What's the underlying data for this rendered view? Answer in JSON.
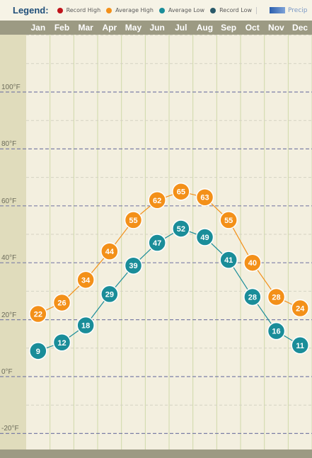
{
  "legend": {
    "title": "Legend:",
    "items": [
      {
        "label": "Record High",
        "color": "#c0141b"
      },
      {
        "label": "Average High",
        "color": "#f39019"
      },
      {
        "label": "Average Low",
        "color": "#1a8d99"
      },
      {
        "label": "Record Low",
        "color": "#2a5a6a"
      }
    ],
    "precip_label": "Precip"
  },
  "chart_data": {
    "type": "line",
    "categories": [
      "Jan",
      "Feb",
      "Mar",
      "Apr",
      "May",
      "Jun",
      "Jul",
      "Aug",
      "Sep",
      "Oct",
      "Nov",
      "Dec"
    ],
    "series": [
      {
        "name": "Average High",
        "color": "#f39019",
        "values": [
          22,
          26,
          34,
          44,
          55,
          62,
          65,
          63,
          55,
          40,
          28,
          24
        ]
      },
      {
        "name": "Average Low",
        "color": "#1a8d99",
        "values": [
          9,
          12,
          18,
          29,
          39,
          47,
          52,
          49,
          41,
          28,
          16,
          11
        ]
      }
    ],
    "y_tick_labels": [
      "100°F",
      "80°F",
      "60°F",
      "40°F",
      "20°F",
      "0°F",
      "-20°F"
    ],
    "y_ticks": [
      100,
      80,
      60,
      40,
      20,
      0,
      -20
    ],
    "ylim": [
      -22,
      122
    ],
    "grid": true
  }
}
